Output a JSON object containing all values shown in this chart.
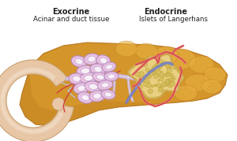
{
  "background_color": "#ffffff",
  "title_left": "Exocrine",
  "subtitle_left": "Acinar and duct tissue",
  "title_right": "Endocrine",
  "subtitle_right": "Islets of Langerhans",
  "pancreas_color": "#d4952a",
  "pancreas_highlight": "#e8b040",
  "pancreas_shadow": "#b87820",
  "pancreas_lobe_color": "#c88820",
  "duodenum_color": "#e8c8a8",
  "duodenum_inner": "#f8e8d8",
  "duodenum_edge": "#c8a070",
  "acinar_outer": "#e8c0e0",
  "acinar_border": "#b088b8",
  "acinar_inner_fill": "#f8f0f8",
  "acinar_inner_border": "#c0a0d0",
  "duct_color_outer": "#c8b0d8",
  "duct_color_inner": "#e8e0f0",
  "vessel_red": "#d04040",
  "vessel_pink": "#e87878",
  "vessel_blue": "#6878c0",
  "vessel_gray": "#a8a8b8",
  "islet_fill": "#e8d080",
  "islet_border": "#c8a040",
  "islet_cell_fill": "#d8c060",
  "islet_cell_border": "#b89830",
  "islet_outer_halo": "#f0e8a0",
  "text_color": "#222222",
  "label_fontsize": 7.0,
  "sublabel_fontsize": 6.2
}
